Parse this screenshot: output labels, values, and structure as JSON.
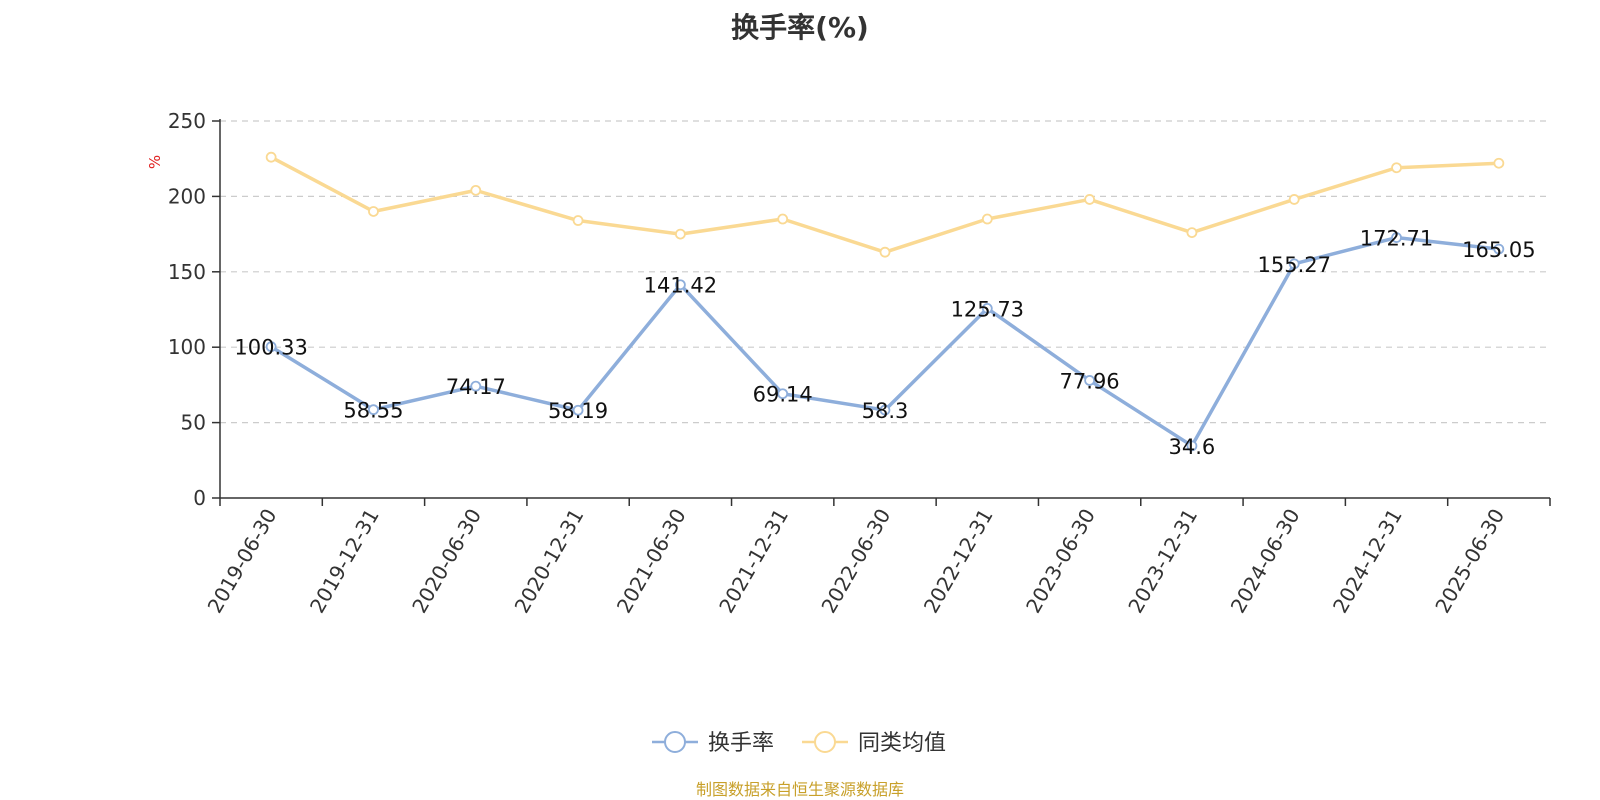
{
  "title": "换手率(%)",
  "source": "制图数据来自恒生聚源数据库",
  "chart_data": {
    "type": "line",
    "title": "换手率(%)",
    "ylabel": "%",
    "ylim": [
      0,
      250
    ],
    "yticks": [
      0,
      50,
      100,
      150,
      200,
      250
    ],
    "grid": true,
    "legend_position": "bottom-center",
    "categories": [
      "2019-06-30",
      "2019-12-31",
      "2020-06-30",
      "2020-12-31",
      "2021-06-30",
      "2021-12-31",
      "2022-06-30",
      "2022-12-31",
      "2023-06-30",
      "2023-12-31",
      "2024-06-30",
      "2024-12-31",
      "2025-06-30"
    ],
    "series": [
      {
        "name": "换手率",
        "color": "#8eaedb",
        "show_labels": true,
        "values": [
          100.33,
          58.55,
          74.17,
          58.19,
          141.42,
          69.14,
          58.3,
          125.73,
          77.96,
          34.6,
          155.27,
          172.71,
          165.05
        ]
      },
      {
        "name": "同类均值",
        "color": "#fad993",
        "show_labels": false,
        "values": [
          226,
          190,
          204,
          184,
          175,
          185,
          163,
          185,
          198,
          176,
          198,
          219,
          222
        ]
      }
    ]
  },
  "colors": {
    "axis": "#333333",
    "grid": "#cccccc",
    "ylabel": "#e02020",
    "source": "#c8a02a"
  }
}
